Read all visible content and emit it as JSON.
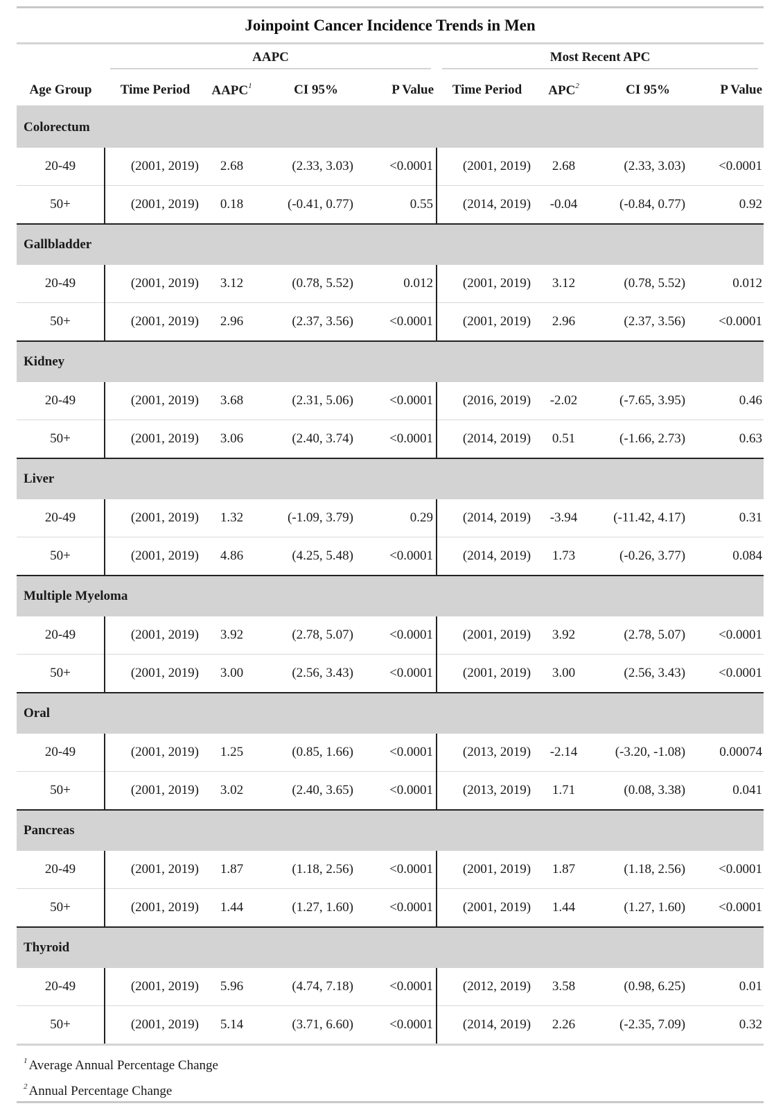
{
  "title": "Joinpoint Cancer Incidence Trends in Men",
  "spanners": {
    "aapc": "AAPC",
    "recent": "Most Recent APC"
  },
  "columns": {
    "age_group": "Age Group",
    "time_period": "Time Period",
    "aapc": "AAPC",
    "aapc_sup": "1",
    "ci": "CI 95%",
    "p_value": "P Value",
    "time_period_2": "Time Period",
    "apc": "APC",
    "apc_sup": "2",
    "ci_2": "CI 95%",
    "p_value_2": "P Value"
  },
  "groups": [
    {
      "name": "Colorectum",
      "rows": [
        {
          "age": "20-49",
          "tp": "(2001, 2019)",
          "aapc": "2.68",
          "ci": "(2.33, 3.03)",
          "p": "<0.0001",
          "tp2": "(2001, 2019)",
          "apc": "2.68",
          "ci2": "(2.33, 3.03)",
          "p2": "<0.0001"
        },
        {
          "age": "50+",
          "tp": "(2001, 2019)",
          "aapc": "0.18",
          "ci": "(-0.41, 0.77)",
          "p": "0.55",
          "tp2": "(2014, 2019)",
          "apc": "-0.04",
          "ci2": "(-0.84, 0.77)",
          "p2": "0.92"
        }
      ]
    },
    {
      "name": "Gallbladder",
      "rows": [
        {
          "age": "20-49",
          "tp": "(2001, 2019)",
          "aapc": "3.12",
          "ci": "(0.78, 5.52)",
          "p": "0.012",
          "tp2": "(2001, 2019)",
          "apc": "3.12",
          "ci2": "(0.78, 5.52)",
          "p2": "0.012"
        },
        {
          "age": "50+",
          "tp": "(2001, 2019)",
          "aapc": "2.96",
          "ci": "(2.37, 3.56)",
          "p": "<0.0001",
          "tp2": "(2001, 2019)",
          "apc": "2.96",
          "ci2": "(2.37, 3.56)",
          "p2": "<0.0001"
        }
      ]
    },
    {
      "name": "Kidney",
      "rows": [
        {
          "age": "20-49",
          "tp": "(2001, 2019)",
          "aapc": "3.68",
          "ci": "(2.31, 5.06)",
          "p": "<0.0001",
          "tp2": "(2016, 2019)",
          "apc": "-2.02",
          "ci2": "(-7.65, 3.95)",
          "p2": "0.46"
        },
        {
          "age": "50+",
          "tp": "(2001, 2019)",
          "aapc": "3.06",
          "ci": "(2.40, 3.74)",
          "p": "<0.0001",
          "tp2": "(2014, 2019)",
          "apc": "0.51",
          "ci2": "(-1.66, 2.73)",
          "p2": "0.63"
        }
      ]
    },
    {
      "name": "Liver",
      "rows": [
        {
          "age": "20-49",
          "tp": "(2001, 2019)",
          "aapc": "1.32",
          "ci": "(-1.09, 3.79)",
          "p": "0.29",
          "tp2": "(2014, 2019)",
          "apc": "-3.94",
          "ci2": "(-11.42, 4.17)",
          "p2": "0.31"
        },
        {
          "age": "50+",
          "tp": "(2001, 2019)",
          "aapc": "4.86",
          "ci": "(4.25, 5.48)",
          "p": "<0.0001",
          "tp2": "(2014, 2019)",
          "apc": "1.73",
          "ci2": "(-0.26, 3.77)",
          "p2": "0.084"
        }
      ]
    },
    {
      "name": "Multiple Myeloma",
      "rows": [
        {
          "age": "20-49",
          "tp": "(2001, 2019)",
          "aapc": "3.92",
          "ci": "(2.78, 5.07)",
          "p": "<0.0001",
          "tp2": "(2001, 2019)",
          "apc": "3.92",
          "ci2": "(2.78, 5.07)",
          "p2": "<0.0001"
        },
        {
          "age": "50+",
          "tp": "(2001, 2019)",
          "aapc": "3.00",
          "ci": "(2.56, 3.43)",
          "p": "<0.0001",
          "tp2": "(2001, 2019)",
          "apc": "3.00",
          "ci2": "(2.56, 3.43)",
          "p2": "<0.0001"
        }
      ]
    },
    {
      "name": "Oral",
      "rows": [
        {
          "age": "20-49",
          "tp": "(2001, 2019)",
          "aapc": "1.25",
          "ci": "(0.85, 1.66)",
          "p": "<0.0001",
          "tp2": "(2013, 2019)",
          "apc": "-2.14",
          "ci2": "(-3.20, -1.08)",
          "p2": "0.00074"
        },
        {
          "age": "50+",
          "tp": "(2001, 2019)",
          "aapc": "3.02",
          "ci": "(2.40, 3.65)",
          "p": "<0.0001",
          "tp2": "(2013, 2019)",
          "apc": "1.71",
          "ci2": "(0.08, 3.38)",
          "p2": "0.041"
        }
      ]
    },
    {
      "name": "Pancreas",
      "rows": [
        {
          "age": "20-49",
          "tp": "(2001, 2019)",
          "aapc": "1.87",
          "ci": "(1.18, 2.56)",
          "p": "<0.0001",
          "tp2": "(2001, 2019)",
          "apc": "1.87",
          "ci2": "(1.18, 2.56)",
          "p2": "<0.0001"
        },
        {
          "age": "50+",
          "tp": "(2001, 2019)",
          "aapc": "1.44",
          "ci": "(1.27, 1.60)",
          "p": "<0.0001",
          "tp2": "(2001, 2019)",
          "apc": "1.44",
          "ci2": "(1.27, 1.60)",
          "p2": "<0.0001"
        }
      ]
    },
    {
      "name": "Thyroid",
      "rows": [
        {
          "age": "20-49",
          "tp": "(2001, 2019)",
          "aapc": "5.96",
          "ci": "(4.74, 7.18)",
          "p": "<0.0001",
          "tp2": "(2012, 2019)",
          "apc": "3.58",
          "ci2": "(0.98, 6.25)",
          "p2": "0.01"
        },
        {
          "age": "50+",
          "tp": "(2001, 2019)",
          "aapc": "5.14",
          "ci": "(3.71, 6.60)",
          "p": "<0.0001",
          "tp2": "(2014, 2019)",
          "apc": "2.26",
          "ci2": "(-2.35, 7.09)",
          "p2": "0.32"
        }
      ]
    }
  ],
  "footnotes": [
    {
      "mark": "1",
      "text": "Average Annual Percentage Change"
    },
    {
      "mark": "2",
      "text": "Annual Percentage Change"
    }
  ]
}
